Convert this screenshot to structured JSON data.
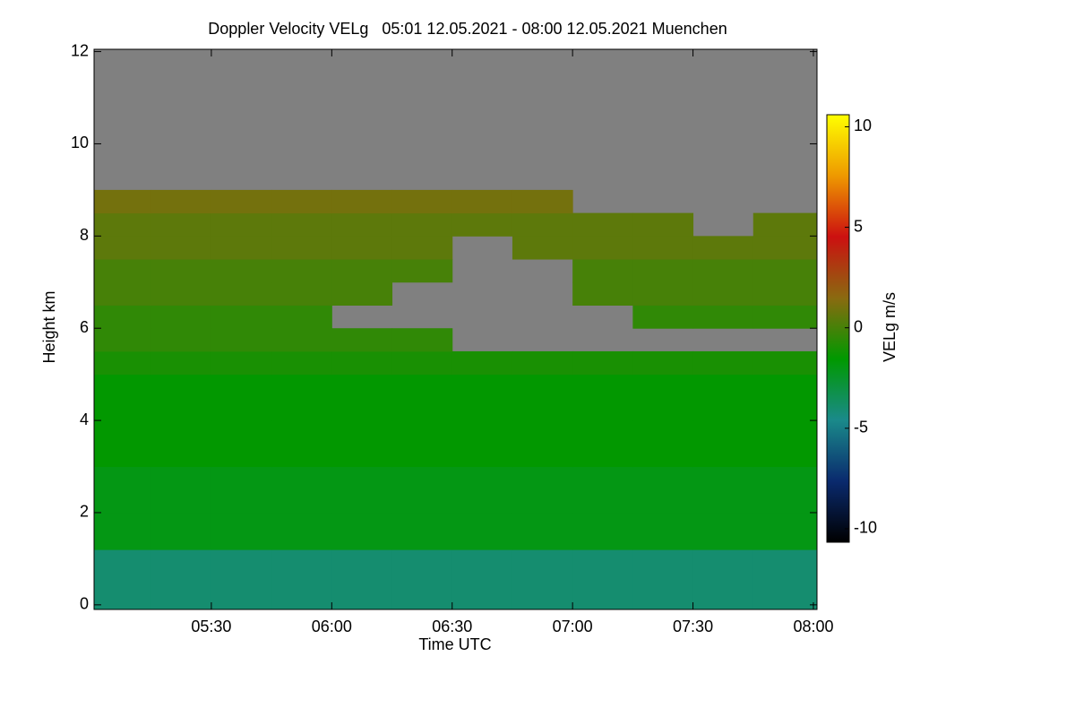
{
  "chart_data": {
    "type": "heatmap",
    "title": "Doppler Velocity VELg   05:01 12.05.2021 - 08:00 12.05.2021 Muenchen",
    "x_label": "Time UTC",
    "y_label": "Height km",
    "colorbar_label": "VELg m/s",
    "xlim": [
      5.013,
      8.015
    ],
    "xticks": [
      {
        "value": 5.5,
        "label": "05:30"
      },
      {
        "value": 6,
        "label": "06:00"
      },
      {
        "value": 6.5,
        "label": "06:30"
      },
      {
        "value": 7,
        "label": "07:00"
      },
      {
        "value": 7.5,
        "label": "07:30"
      },
      {
        "value": 8,
        "label": "08:00"
      }
    ],
    "ylim": [
      -0.1,
      12.05
    ],
    "yticks": [
      0,
      2,
      4,
      6,
      8,
      10,
      12
    ],
    "zlim": [
      -10.67,
      10.6
    ],
    "zticks": [
      -10,
      -5,
      0,
      5,
      10
    ],
    "colormap": [
      "#000000",
      "#0a2a6e",
      "#1a8a8a",
      "#009900",
      "#8a6a10",
      "#cc1010",
      "#ee9900",
      "#ffff00"
    ],
    "missing_color": "#808080",
    "x_bins": [
      5.013,
      5.25,
      5.5,
      5.75,
      6,
      6.25,
      6.5,
      6.75,
      7,
      7.25,
      7.5,
      7.75,
      8.015
    ],
    "y_bins": [
      -0.1,
      1.2,
      2,
      3,
      4,
      5,
      5.5,
      6,
      6.5,
      7,
      7.5,
      8,
      8.5,
      9,
      12.05
    ],
    "values": [
      [
        -4,
        -4,
        -4,
        -4,
        -4,
        -4,
        -4,
        -4,
        -4,
        -4,
        -4,
        -4
      ],
      [
        -2,
        -2,
        -2,
        -2,
        -2,
        -2,
        -2,
        -2,
        -2,
        -2,
        -2,
        -2
      ],
      [
        -2,
        -2,
        -2,
        -2,
        -2,
        -2,
        -2,
        -2,
        -2,
        -2,
        -2,
        -2
      ],
      [
        -1.5,
        -1.5,
        -1.5,
        -1.5,
        -1.5,
        -1.5,
        -1.5,
        -1.5,
        -1.5,
        -1.5,
        -1.5,
        -1.5
      ],
      [
        -1.5,
        -1.5,
        -1.5,
        -1.5,
        -1.5,
        -1.5,
        -1.5,
        -1.5,
        -1.5,
        -1.5,
        -1.5,
        -1.5
      ],
      [
        -1,
        -1,
        -1,
        -1,
        -1,
        -1,
        -1,
        -1,
        -1,
        -1,
        -1,
        -1
      ],
      [
        -0.5,
        -0.5,
        -0.5,
        -0.5,
        -0.5,
        -0.5,
        null,
        null,
        null,
        null,
        null,
        null
      ],
      [
        -0.5,
        -0.5,
        -0.5,
        -0.5,
        null,
        null,
        null,
        null,
        null,
        -0.5,
        -0.5,
        -0.5
      ],
      [
        0,
        0,
        0,
        0,
        0,
        null,
        null,
        null,
        0,
        0,
        0,
        0
      ],
      [
        0,
        0,
        0,
        0,
        0,
        0,
        null,
        null,
        0,
        0,
        0,
        0
      ],
      [
        0.5,
        0.5,
        0.5,
        0.5,
        0.5,
        0.5,
        null,
        0.5,
        0.5,
        0.5,
        0.5,
        0.5
      ],
      [
        0.5,
        0.5,
        0.5,
        0.5,
        0.5,
        0.5,
        0.5,
        0.5,
        0.5,
        0.5,
        null,
        0.5
      ],
      [
        1,
        1,
        1,
        1,
        1,
        1,
        1,
        1,
        null,
        null,
        null,
        null
      ],
      [
        null,
        null,
        null,
        null,
        null,
        null,
        null,
        null,
        null,
        null,
        null,
        null
      ]
    ]
  }
}
